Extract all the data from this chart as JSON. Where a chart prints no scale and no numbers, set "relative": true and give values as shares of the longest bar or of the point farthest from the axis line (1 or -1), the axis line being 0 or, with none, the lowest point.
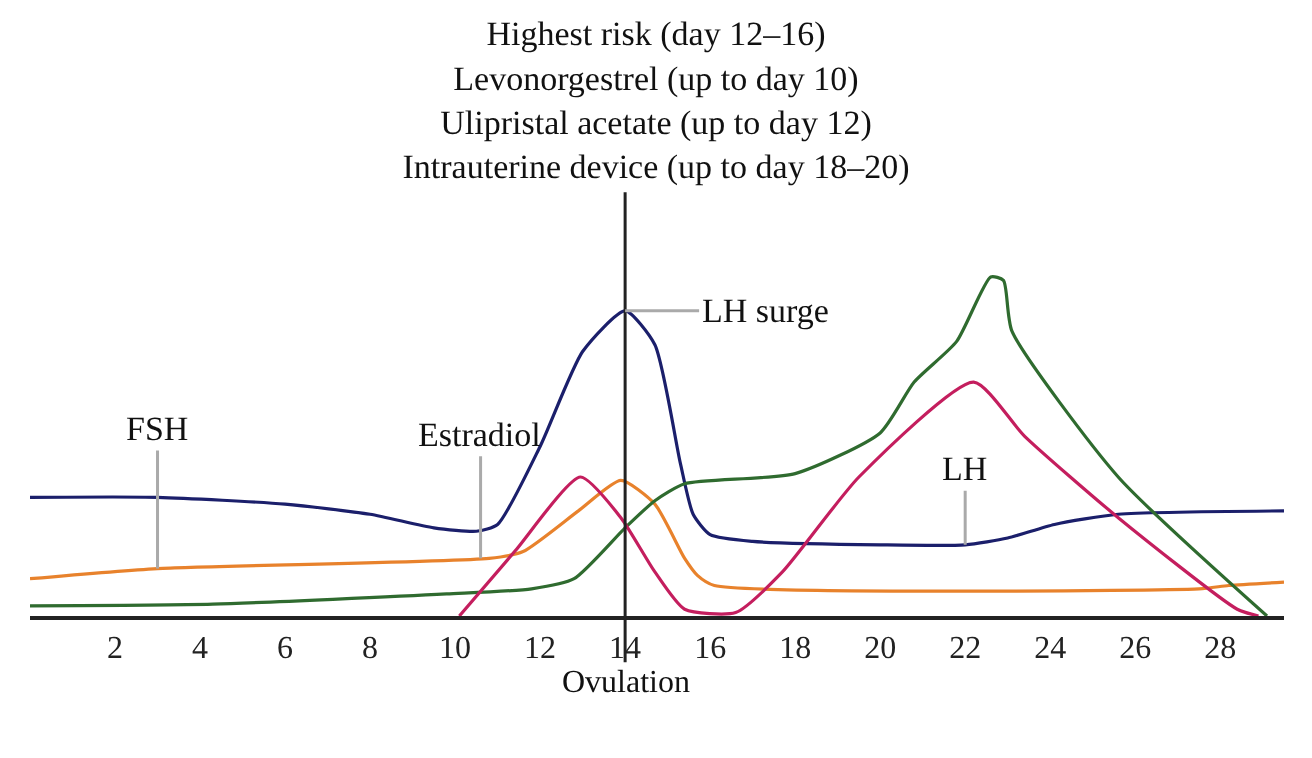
{
  "chart_data": {
    "type": "line",
    "relative": true,
    "title": "Highest risk (day 12–16)\nLevonorgestrel (up to day 10)\nUlipristal acetate (up to day 12)\nIntrauterine device (up to day 18–20)",
    "xlim": [
      0,
      29.5
    ],
    "xticks": [
      2,
      4,
      6,
      8,
      10,
      12,
      14,
      16,
      18,
      20,
      22,
      24,
      26,
      28
    ],
    "tick_labels": "x",
    "series": [
      {
        "color": "#1b1f6b",
        "x": [
          0,
          3,
          6,
          8,
          9.5,
          10.5,
          11,
          12,
          13,
          14,
          14.7,
          15.3,
          15.6,
          16,
          17,
          20,
          22,
          23,
          24.1,
          25.6,
          29.5
        ],
        "values": [
          0.35,
          0.35,
          0.33,
          0.3,
          0.26,
          0.25,
          0.27,
          0.5,
          0.78,
          0.9,
          0.8,
          0.45,
          0.3,
          0.24,
          0.22,
          0.21,
          0.21,
          0.23,
          0.27,
          0.3,
          0.31
        ]
      },
      {
        "color": "#e8822c",
        "x": [
          0,
          3,
          10.8,
          11.6,
          12.9,
          13.9,
          14.7,
          15.4,
          15.7,
          16.1,
          27.5,
          28.2,
          29.5
        ],
        "values": [
          0.11,
          0.14,
          0.17,
          0.19,
          0.31,
          0.4,
          0.33,
          0.17,
          0.12,
          0.09,
          0.08,
          0.09,
          0.1
        ]
      },
      {
        "color": "#2f6b2f",
        "x": [
          0,
          4.3,
          9.8,
          11.8,
          12.8,
          14,
          14.7,
          15.4,
          18,
          20,
          20.8,
          21.8,
          22.6,
          22.9,
          23.1,
          25.6,
          29.1
        ],
        "values": [
          0.03,
          0.035,
          0.065,
          0.08,
          0.11,
          0.26,
          0.34,
          0.39,
          0.42,
          0.54,
          0.69,
          0.81,
          1.0,
          0.99,
          0.84,
          0.41,
          0
        ]
      },
      {
        "color": "#c41e5e",
        "x": [
          10.1,
          11.4,
          12.95,
          13.9,
          14.7,
          15.4,
          16.6,
          17.7,
          19.5,
          22.2,
          23.4,
          25.6,
          28.4,
          28.9
        ],
        "values": [
          0,
          0.19,
          0.41,
          0.29,
          0.13,
          0.02,
          0.01,
          0.13,
          0.41,
          0.69,
          0.53,
          0.29,
          0.02,
          0
        ]
      }
    ],
    "ref_lines": [
      {
        "axis": "x",
        "value": 14,
        "label": "Ovulation",
        "color": "#222222"
      }
    ],
    "annotations": [
      {
        "text": "FSH",
        "x": 3,
        "y": 0.14
      },
      {
        "text": "Estradiol",
        "x": 10.6,
        "y": 0.17
      },
      {
        "text": "LH surge",
        "x": 14,
        "y": 0.9
      },
      {
        "text": "LH",
        "x": 22,
        "y": 0.21
      }
    ]
  }
}
